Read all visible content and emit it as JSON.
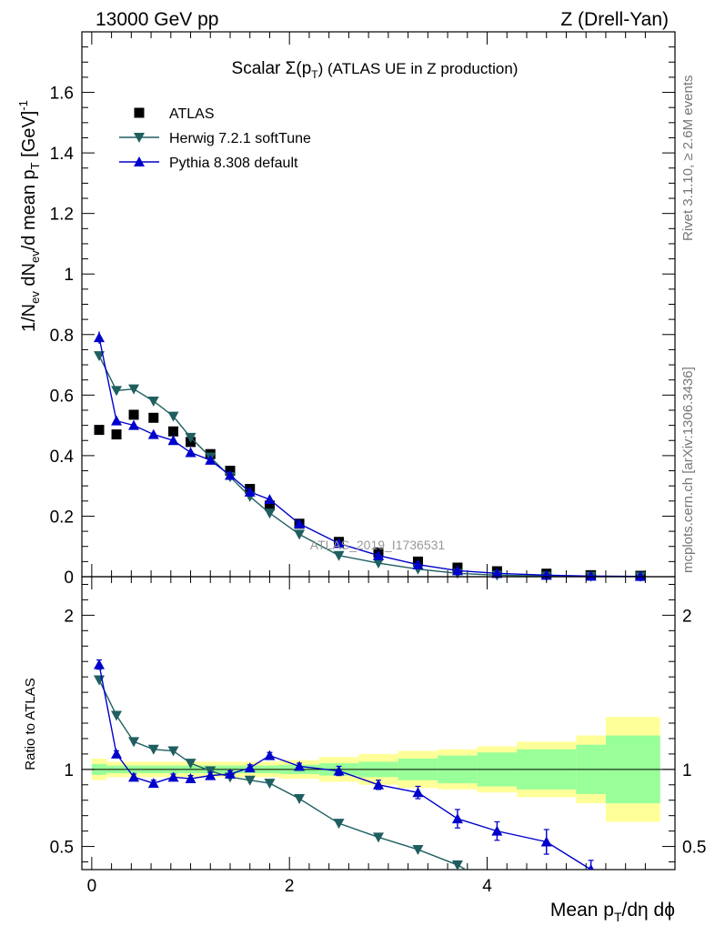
{
  "header": {
    "left": "13000 GeV pp",
    "right": "Z (Drell-Yan)"
  },
  "side_labels": {
    "rivet": "Rivet 3.1.10, ≥ 2.6M events",
    "mcplots": "mcplots.cern.ch [arXiv:1306.3436]"
  },
  "watermark": "ATLAS_2019_I1736531",
  "chart_data": [
    {
      "type": "scatter",
      "panel": "main",
      "title_main": "Scalar Σ(p",
      "title_sub": "T",
      "title_tail": ") (ATLAS UE in Z production)",
      "ylabel": "1/N",
      "ylabel_sub1": "ev",
      "ylabel_mid": " dN",
      "ylabel_sub2": "ev",
      "ylabel_mid2": "/d mean p",
      "ylabel_sub3": "T",
      "ylabel_tail": " [GeV]",
      "ylabel_sup": "-1",
      "xlim": [
        -0.1,
        5.9
      ],
      "ylim": [
        0,
        1.8
      ],
      "yticks": [
        "0",
        "0.2",
        "0.4",
        "0.6",
        "0.8",
        "1",
        "1.2",
        "1.4",
        "1.6"
      ],
      "legend": [
        {
          "name": "ATLAS",
          "color": "#000000",
          "marker": "square"
        },
        {
          "name": "Herwig 7.2.1 softTune",
          "color": "#1f5f60",
          "marker": "triangle-down"
        },
        {
          "name": "Pythia 8.308 default",
          "color": "#0000cc",
          "marker": "triangle-up"
        }
      ],
      "series": [
        {
          "name": "ATLAS",
          "x": [
            0.075,
            0.25,
            0.425,
            0.625,
            0.825,
            1.0,
            1.2,
            1.4,
            1.6,
            1.8,
            2.1,
            2.5,
            2.9,
            3.3,
            3.7,
            4.1,
            4.6,
            5.05,
            5.55
          ],
          "y": [
            0.485,
            0.47,
            0.535,
            0.525,
            0.48,
            0.445,
            0.405,
            0.35,
            0.29,
            0.235,
            0.175,
            0.115,
            0.08,
            0.05,
            0.03,
            0.018,
            0.01,
            0.005,
            0.003
          ]
        },
        {
          "name": "Herwig 7.2.1 softTune",
          "x": [
            0.075,
            0.25,
            0.425,
            0.625,
            0.825,
            1.0,
            1.2,
            1.4,
            1.6,
            1.8,
            2.1,
            2.5,
            2.9,
            3.3,
            3.7,
            4.1,
            4.6,
            5.05,
            5.55
          ],
          "y": [
            0.73,
            0.615,
            0.62,
            0.58,
            0.53,
            0.46,
            0.395,
            0.33,
            0.265,
            0.21,
            0.14,
            0.07,
            0.045,
            0.025,
            0.011,
            0.005,
            0.002,
            0.001,
            0.0005
          ]
        },
        {
          "name": "Pythia 8.308 default",
          "x": [
            0.075,
            0.25,
            0.425,
            0.625,
            0.825,
            1.0,
            1.2,
            1.4,
            1.6,
            1.8,
            2.1,
            2.5,
            2.9,
            3.3,
            3.7,
            4.1,
            4.6,
            5.05,
            5.55
          ],
          "y": [
            0.79,
            0.515,
            0.5,
            0.47,
            0.45,
            0.41,
            0.385,
            0.335,
            0.28,
            0.255,
            0.175,
            0.11,
            0.07,
            0.04,
            0.02,
            0.011,
            0.005,
            0.002,
            0.001
          ],
          "yerr": [
            0.02,
            0.01,
            0.01,
            0.01,
            0.01,
            0.01,
            0.01,
            0.01,
            0.008,
            0.008,
            0.006,
            0.004,
            0.003,
            0.002,
            0.002,
            0.001,
            0.001,
            0.0005,
            0.0005
          ]
        }
      ]
    },
    {
      "type": "line",
      "panel": "ratio",
      "xlabel": "Mean p",
      "xlabel_sub": "T",
      "xlabel_tail": "/dη dϕ",
      "ylabel": "Ratio to ATLAS",
      "xlim": [
        -0.1,
        5.9
      ],
      "ylim": [
        0.35,
        2.25
      ],
      "xticks": [
        "0",
        "2",
        "4"
      ],
      "yticks": [
        "0.5",
        "1",
        "2"
      ],
      "bands": {
        "x_edges": [
          0,
          0.15,
          0.35,
          0.5,
          0.75,
          0.9,
          1.1,
          1.3,
          1.5,
          1.7,
          1.9,
          2.3,
          2.7,
          3.1,
          3.5,
          3.9,
          4.3,
          4.9,
          5.2,
          5.75
        ],
        "yellow_half": [
          0.07,
          0.05,
          0.05,
          0.05,
          0.05,
          0.05,
          0.05,
          0.05,
          0.05,
          0.05,
          0.06,
          0.08,
          0.1,
          0.12,
          0.13,
          0.15,
          0.18,
          0.22,
          0.34
        ],
        "green_half": [
          0.035,
          0.025,
          0.025,
          0.025,
          0.025,
          0.025,
          0.025,
          0.025,
          0.025,
          0.025,
          0.03,
          0.04,
          0.05,
          0.07,
          0.09,
          0.11,
          0.13,
          0.16,
          0.22
        ]
      },
      "series": [
        {
          "name": "Herwig 7.2.1 softTune",
          "x": [
            0.075,
            0.25,
            0.425,
            0.625,
            0.825,
            1.0,
            1.2,
            1.4,
            1.6,
            1.8,
            2.1,
            2.5,
            2.9,
            3.3,
            3.7,
            3.92
          ],
          "y": [
            1.58,
            1.35,
            1.18,
            1.13,
            1.12,
            1.04,
            0.99,
            0.95,
            0.93,
            0.91,
            0.81,
            0.65,
            0.56,
            0.48,
            0.38,
            0.3
          ]
        },
        {
          "name": "Pythia 8.308 default",
          "x": [
            0.075,
            0.25,
            0.425,
            0.625,
            0.825,
            1.0,
            1.2,
            1.4,
            1.6,
            1.8,
            2.1,
            2.5,
            2.9,
            3.3,
            3.7,
            4.1,
            4.6,
            5.05
          ],
          "y": [
            1.68,
            1.1,
            0.95,
            0.91,
            0.95,
            0.94,
            0.96,
            0.97,
            1.01,
            1.09,
            1.02,
            0.99,
            0.9,
            0.85,
            0.68,
            0.6,
            0.53,
            0.35
          ],
          "yerr": [
            0.03,
            0.02,
            0.02,
            0.02,
            0.02,
            0.02,
            0.02,
            0.02,
            0.02,
            0.02,
            0.02,
            0.03,
            0.03,
            0.04,
            0.06,
            0.06,
            0.08,
            0.06
          ]
        }
      ]
    }
  ]
}
